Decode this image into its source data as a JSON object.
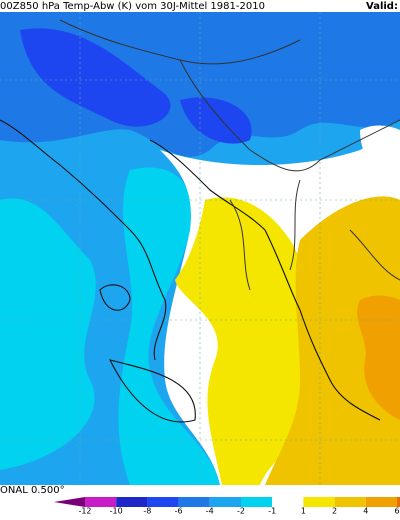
{
  "header": {
    "title": "00Z850 hPa Temp-Abw (K) vom 30J-Mittel 1981-2010",
    "valid": "Valid:"
  },
  "footer": {
    "projection": "ONAL 0.500°"
  },
  "legend": {
    "ticks": [
      -12,
      -10,
      -8,
      -6,
      -4,
      -2,
      -1,
      1,
      2,
      4,
      6
    ],
    "colors": [
      "#7a007a",
      "#c81ec8",
      "#1e28c8",
      "#1e46f0",
      "#1e78e6",
      "#1ea5f0",
      "#00d2f0",
      "#ffffff",
      "#f5e600",
      "#f0c300",
      "#f0a000",
      "#e66e00"
    ]
  }
}
